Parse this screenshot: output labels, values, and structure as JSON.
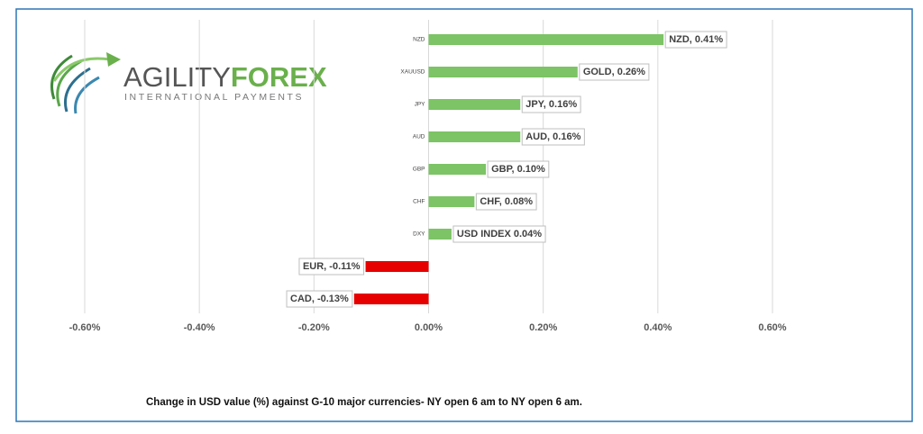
{
  "chart_data": {
    "type": "hbar",
    "logo": {
      "name_first": "AGILITY",
      "name_second": "FOREX",
      "tagline": "INTERNATIONAL PAYMENTS"
    },
    "caption": "Change in  USD value (%)  against  G-10 major currencies- NY open 6 am to NY open 6 am.",
    "categories": [
      "NZD",
      "XAUUSD",
      "JPY",
      "AUD",
      "GBP",
      "CHF",
      "DXY",
      null,
      null
    ],
    "values": [
      0.41,
      0.26,
      0.16,
      0.16,
      0.1,
      0.08,
      0.04,
      -0.11,
      -0.13
    ],
    "value_labels": [
      "NZD, 0.41%",
      "GOLD, 0.26%",
      "JPY, 0.16%",
      "AUD, 0.16%",
      "GBP, 0.10%",
      "CHF, 0.08%",
      "USD INDEX 0.04%",
      "EUR, -0.11%",
      "CAD, -0.13%"
    ],
    "positive_color": "#7cc465",
    "negative_color": "#e60000",
    "xlim": [
      -0.6,
      0.6
    ],
    "xticks": [
      {
        "value": -0.6,
        "label": "-0.60%"
      },
      {
        "value": -0.4,
        "label": "-0.40%"
      },
      {
        "value": -0.2,
        "label": "-0.20%"
      },
      {
        "value": 0,
        "label": "0.00%"
      },
      {
        "value": 0.2,
        "label": "0.20%"
      },
      {
        "value": 0.4,
        "label": "0.40%"
      },
      {
        "value": 0.6,
        "label": "0.60%"
      }
    ],
    "grid": true
  }
}
